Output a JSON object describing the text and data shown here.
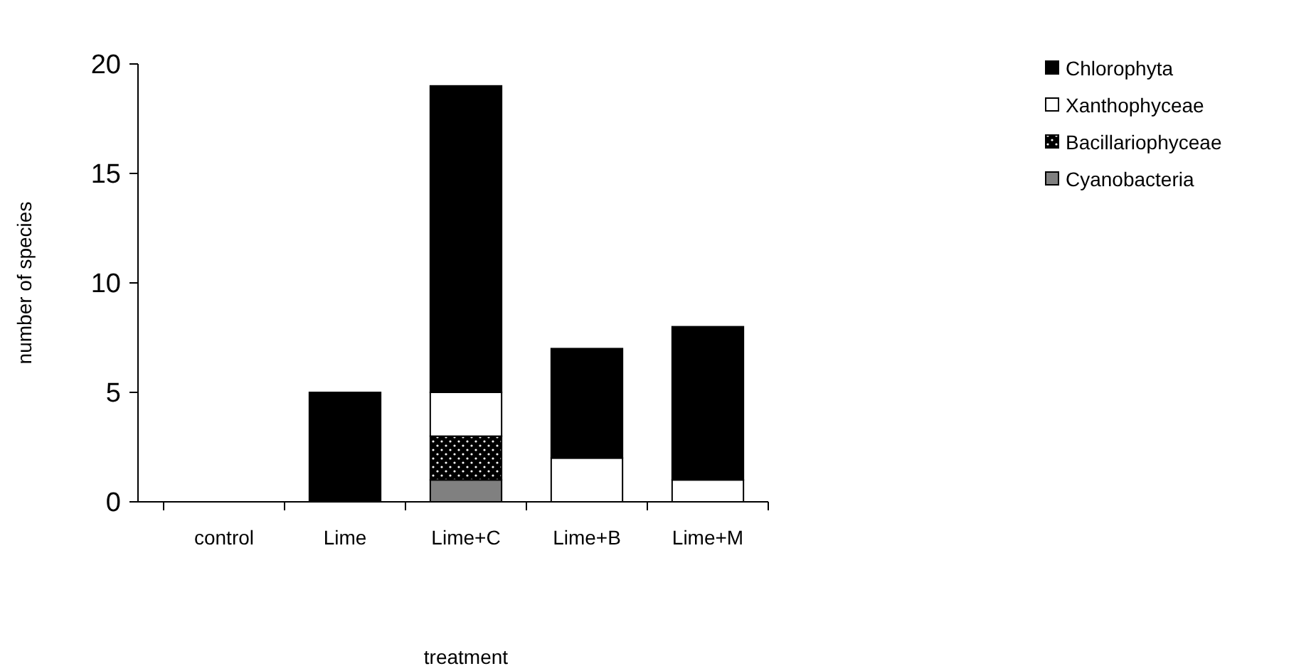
{
  "chart_data": {
    "type": "bar",
    "stacked": true,
    "xlabel": "treatment",
    "ylabel": "number of species",
    "categories": [
      "control",
      "Lime",
      "Lime+C",
      "Lime+B",
      "Lime+M"
    ],
    "series": [
      {
        "name": "Cyanobacteria",
        "color": "#808080",
        "values": [
          0,
          0,
          1,
          0,
          0
        ]
      },
      {
        "name": "Bacillariophyceae",
        "color": "#000000",
        "values": [
          0,
          0,
          2,
          0,
          0
        ]
      },
      {
        "name": "Xanthophyceae",
        "color": "#ffffff",
        "values": [
          0,
          0,
          2,
          2,
          1
        ]
      },
      {
        "name": "Chlorophyta",
        "color": "#000000",
        "values": [
          0,
          5,
          14,
          5,
          7
        ]
      }
    ],
    "ylim": [
      0,
      20
    ],
    "yticks": [
      0,
      5,
      10,
      15,
      20
    ],
    "grid": false,
    "legend": "top right"
  }
}
